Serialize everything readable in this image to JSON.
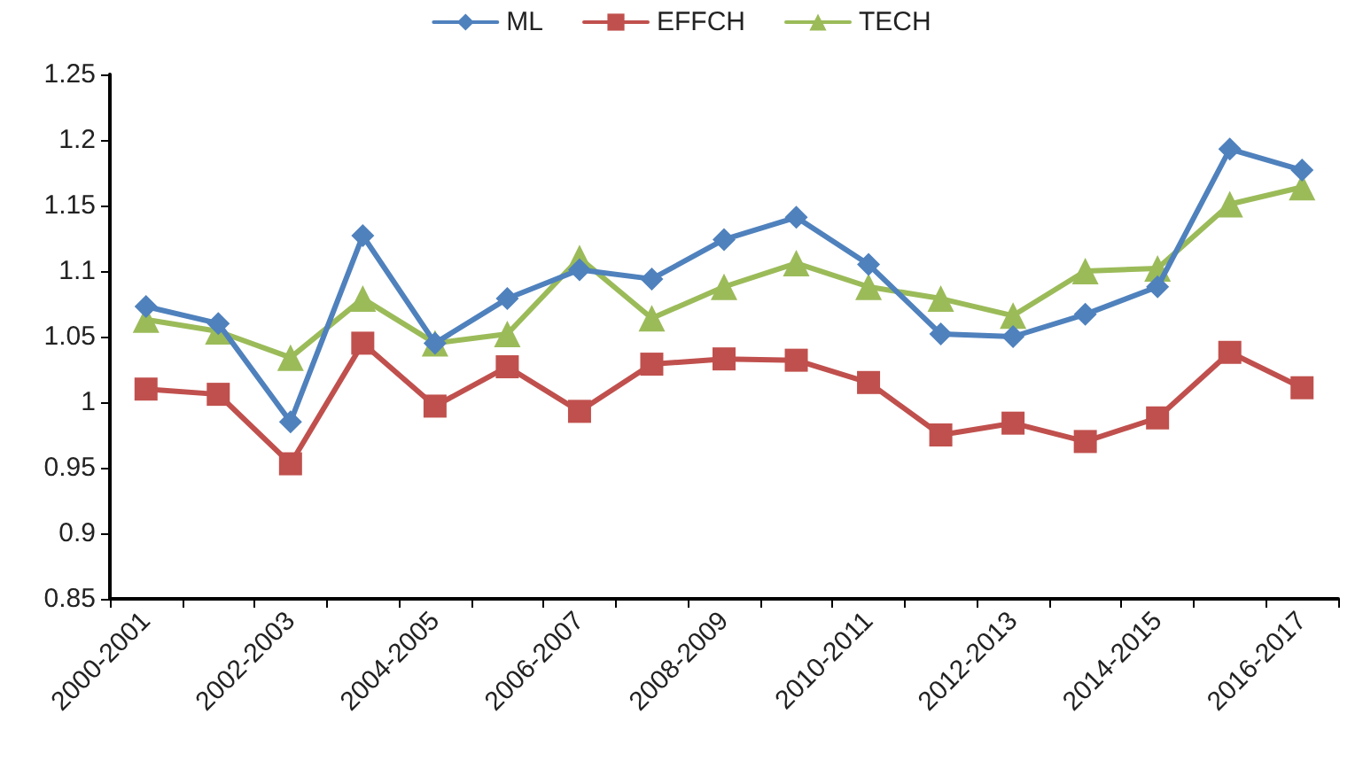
{
  "chart_data": {
    "type": "line",
    "categories": [
      "2000-2001",
      null,
      "2002-2003",
      null,
      "2004-2005",
      null,
      "2006-2007",
      null,
      "2008-2009",
      null,
      "2010-2011",
      null,
      "2012-2013",
      null,
      "2014-2015",
      null,
      "2016-2017"
    ],
    "series": [
      {
        "name": "ML",
        "color": "#4f81bd",
        "marker": "diamond",
        "values": [
          1.073,
          1.06,
          0.985,
          1.127,
          1.045,
          1.079,
          1.101,
          1.094,
          1.124,
          1.141,
          1.105,
          1.052,
          1.05,
          1.067,
          1.088,
          1.193,
          1.177
        ]
      },
      {
        "name": "EFFCH",
        "color": "#c0504d",
        "marker": "square",
        "values": [
          1.01,
          1.006,
          0.953,
          1.045,
          0.997,
          1.027,
          0.993,
          1.029,
          1.033,
          1.032,
          1.015,
          0.975,
          0.984,
          0.97,
          0.988,
          1.038,
          1.011
        ]
      },
      {
        "name": "TECH",
        "color": "#9bbb59",
        "marker": "triangle",
        "values": [
          1.063,
          1.054,
          1.034,
          1.079,
          1.045,
          1.052,
          1.11,
          1.064,
          1.088,
          1.106,
          1.088,
          1.079,
          1.066,
          1.1,
          1.102,
          1.151,
          1.164
        ]
      }
    ],
    "ylim": [
      0.85,
      1.25
    ],
    "yticks": [
      0.85,
      0.9,
      0.95,
      1,
      1.05,
      1.1,
      1.15,
      1.2,
      1.25
    ],
    "grid": false,
    "legend": "top",
    "line_style": "solid"
  }
}
